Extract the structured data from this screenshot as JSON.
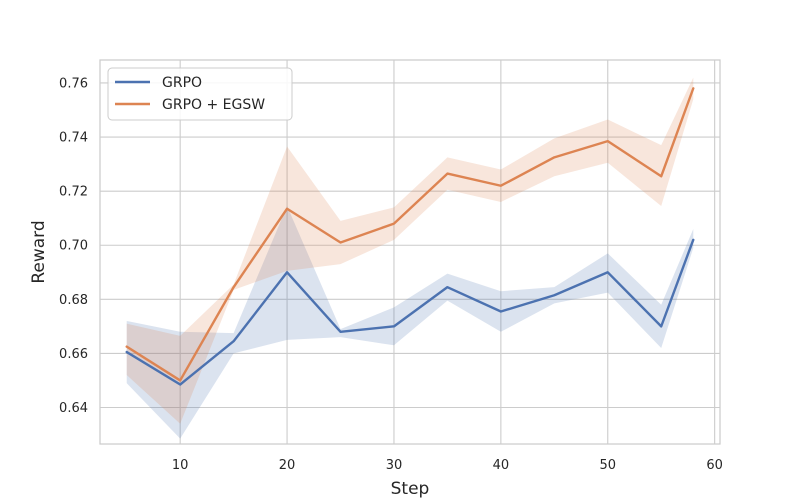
{
  "chart_data": {
    "type": "line",
    "xlabel": "Step",
    "ylabel": "Reward",
    "xlim": [
      2.5,
      60.5
    ],
    "ylim": [
      0.6265,
      0.7685
    ],
    "xticks": [
      10,
      20,
      30,
      40,
      50,
      60
    ],
    "yticks": [
      0.64,
      0.66,
      0.68,
      0.7,
      0.72,
      0.74,
      0.76
    ],
    "xtick_labels": [
      "10",
      "20",
      "30",
      "40",
      "50",
      "60"
    ],
    "ytick_labels": [
      "0.64",
      "0.66",
      "0.68",
      "0.70",
      "0.72",
      "0.74",
      "0.76"
    ],
    "grid": true,
    "legend_position": "upper-left",
    "x": [
      5,
      10,
      15,
      20,
      25,
      30,
      35,
      40,
      45,
      50,
      55,
      58
    ],
    "series": [
      {
        "name": "GRPO",
        "color": "#4c72b0",
        "values": [
          0.6605,
          0.6485,
          0.6645,
          0.69,
          0.668,
          0.67,
          0.6845,
          0.6755,
          0.6815,
          0.69,
          0.67,
          0.702
        ],
        "lower": [
          0.649,
          0.6285,
          0.66,
          0.665,
          0.666,
          0.663,
          0.6795,
          0.668,
          0.6785,
          0.6825,
          0.662,
          0.699
        ],
        "upper": [
          0.672,
          0.668,
          0.6675,
          0.7145,
          0.669,
          0.677,
          0.6895,
          0.683,
          0.6845,
          0.697,
          0.678,
          0.706
        ]
      },
      {
        "name": "GRPO + EGSW",
        "color": "#dd8452",
        "values": [
          0.6625,
          0.65,
          0.6845,
          0.7135,
          0.701,
          0.708,
          0.7265,
          0.722,
          0.7325,
          0.7385,
          0.7255,
          0.758
        ],
        "lower": [
          0.652,
          0.634,
          0.6835,
          0.6905,
          0.693,
          0.702,
          0.7205,
          0.716,
          0.7255,
          0.7305,
          0.7145,
          0.754
        ],
        "upper": [
          0.671,
          0.6665,
          0.6855,
          0.7365,
          0.709,
          0.714,
          0.7325,
          0.728,
          0.7395,
          0.7465,
          0.737,
          0.762
        ]
      }
    ]
  }
}
